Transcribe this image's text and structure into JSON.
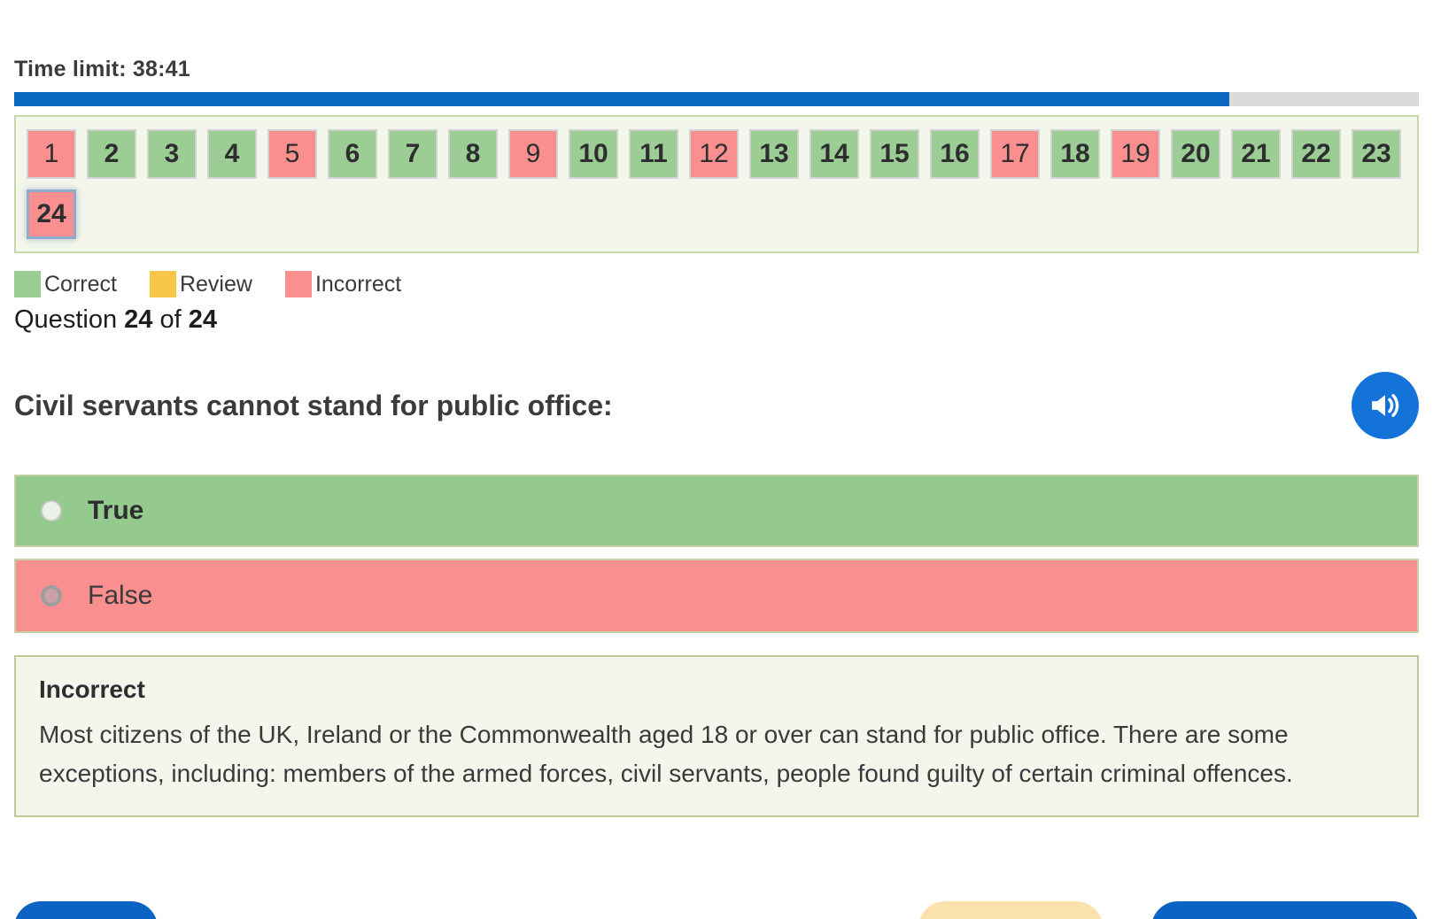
{
  "timer": {
    "text": "Time limit: 38:41",
    "progress_percent": 86.5
  },
  "navigator": {
    "tiles": [
      {
        "n": "1",
        "status": "incorrect"
      },
      {
        "n": "2",
        "status": "correct"
      },
      {
        "n": "3",
        "status": "correct"
      },
      {
        "n": "4",
        "status": "correct"
      },
      {
        "n": "5",
        "status": "incorrect"
      },
      {
        "n": "6",
        "status": "correct"
      },
      {
        "n": "7",
        "status": "correct"
      },
      {
        "n": "8",
        "status": "correct"
      },
      {
        "n": "9",
        "status": "incorrect"
      },
      {
        "n": "10",
        "status": "correct"
      },
      {
        "n": "11",
        "status": "correct"
      },
      {
        "n": "12",
        "status": "incorrect"
      },
      {
        "n": "13",
        "status": "correct"
      },
      {
        "n": "14",
        "status": "correct"
      },
      {
        "n": "15",
        "status": "correct"
      },
      {
        "n": "16",
        "status": "correct"
      },
      {
        "n": "17",
        "status": "incorrect"
      },
      {
        "n": "18",
        "status": "correct"
      },
      {
        "n": "19",
        "status": "incorrect"
      },
      {
        "n": "20",
        "status": "correct"
      },
      {
        "n": "21",
        "status": "correct"
      },
      {
        "n": "22",
        "status": "correct"
      },
      {
        "n": "23",
        "status": "correct"
      },
      {
        "n": "24",
        "status": "incorrect",
        "current": true
      }
    ]
  },
  "legend": {
    "items": [
      {
        "label": "Correct",
        "color": "#9ccd94"
      },
      {
        "label": "Review",
        "color": "#f8c64a"
      },
      {
        "label": "Incorrect",
        "color": "#f9908f"
      }
    ]
  },
  "counter": {
    "prefix": "Question",
    "current": "24",
    "of": "of",
    "total": "24"
  },
  "question": {
    "text": "Civil servants cannot stand for public office:"
  },
  "answers": [
    {
      "label": "True",
      "highlight": "correct-answer",
      "selected": false
    },
    {
      "label": "False",
      "highlight": "incorrect-choice",
      "selected": true
    }
  ],
  "feedback": {
    "title": "Incorrect",
    "text": "Most citizens of the UK, Ireland or the Commonwealth aged 18 or over can stand for public office. There are some exceptions, including: members of the armed forces, civil servants, people found guilty of certain criminal offences."
  },
  "colors": {
    "progress_fill": "#0a68c2",
    "progress_track": "#dbdbdb",
    "correct_green": "#9ccd94",
    "incorrect_red": "#f9908f",
    "review_yellow": "#f8c64a",
    "current_tile_border": "#8fabc9",
    "panel_bg": "#f3f6eb",
    "panel_border": "#c9d6aa",
    "audio_blue": "#1373d8",
    "button_blue": "#0b64c4",
    "button_cream": "#fbe2ac"
  }
}
